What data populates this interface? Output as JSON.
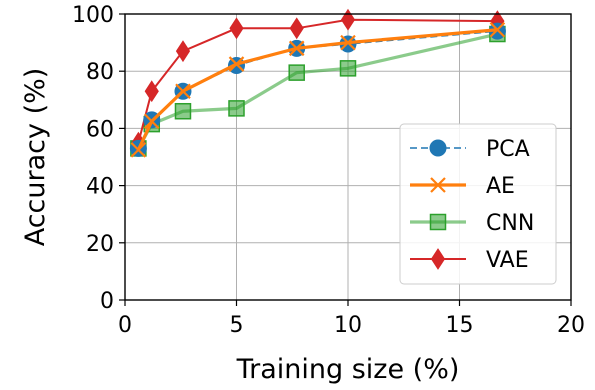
{
  "chart_data": {
    "type": "line",
    "xlabel": "Training size (%)",
    "ylabel": "Accuracy (%)",
    "xlim": [
      0,
      20
    ],
    "ylim": [
      0,
      100
    ],
    "xticks": [
      0,
      5,
      10,
      15,
      20
    ],
    "yticks": [
      0,
      20,
      40,
      60,
      80,
      100
    ],
    "grid": true,
    "legend_position": "lower-right",
    "series": [
      {
        "name": "PCA",
        "color": "#1f77b4",
        "line_style": "dashed",
        "marker": "circle",
        "x": [
          0.6,
          1.2,
          2.6,
          5,
          7.7,
          10,
          16.7
        ],
        "y": [
          53,
          63,
          73,
          82,
          88,
          89.5,
          94
        ]
      },
      {
        "name": "AE",
        "color": "#ff7f0e",
        "line_style": "solid",
        "marker": "x",
        "x": [
          0.6,
          1.2,
          2.6,
          5,
          7.7,
          10,
          16.7
        ],
        "y": [
          52.5,
          62.5,
          73,
          82.5,
          88,
          90,
          94.5
        ]
      },
      {
        "name": "CNN",
        "color": "#2ca02c",
        "line_style": "solid",
        "marker": "square",
        "x": [
          0.6,
          1.2,
          2.6,
          5,
          7.7,
          10,
          16.7
        ],
        "y": [
          53,
          61.5,
          66,
          67,
          79.5,
          81,
          93
        ]
      },
      {
        "name": "VAE",
        "color": "#d62728",
        "line_style": "solid",
        "marker": "diamond",
        "x": [
          0.6,
          1.2,
          2.6,
          5,
          7.7,
          10,
          16.7
        ],
        "y": [
          55,
          73,
          87,
          95,
          95,
          98,
          97.5
        ]
      }
    ]
  }
}
